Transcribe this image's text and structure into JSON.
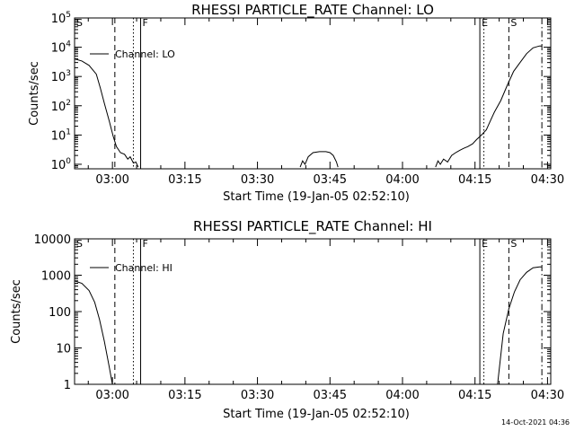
{
  "chart_data": [
    {
      "type": "line",
      "title": "RHESSI PARTICLE_RATE Channel: LO",
      "xlabel": "Start Time (19-Jan-05 02:52:10)",
      "ylabel": "Counts/sec",
      "yscale": "log",
      "xlim": [
        "02:52:10",
        "04:30:40"
      ],
      "ylim": [
        0.7,
        100000
      ],
      "xticks": [
        "03:00",
        "03:15",
        "03:30",
        "03:45",
        "04:00",
        "04:15",
        "04:30"
      ],
      "yticks": [
        {
          "value": 1,
          "base": "10",
          "exp": "0"
        },
        {
          "value": 10,
          "base": "10",
          "exp": "1"
        },
        {
          "value": 100,
          "base": "10",
          "exp": "2"
        },
        {
          "value": 1000,
          "base": "10",
          "exp": "3"
        },
        {
          "value": 10000,
          "base": "10",
          "exp": "4"
        },
        {
          "value": 100000,
          "base": "10",
          "exp": "5"
        }
      ],
      "legend": {
        "label": "Channel: LO",
        "position": "top-left"
      },
      "markers": [
        {
          "label": "S",
          "time": "02:52:10",
          "style": "solid"
        },
        {
          "label": "",
          "time": "03:00:30",
          "style": "dashed"
        },
        {
          "label": "",
          "time": "03:04:20",
          "style": "dotted"
        },
        {
          "label": "F",
          "time": "03:05:50",
          "style": "solid"
        },
        {
          "label": "E",
          "time": "04:16:00",
          "style": "solid"
        },
        {
          "label": "",
          "time": "04:16:50",
          "style": "dotted"
        },
        {
          "label": "S",
          "time": "04:22:00",
          "style": "dashed"
        },
        {
          "label": "",
          "time": "04:28:50",
          "style": "dashdot"
        }
      ],
      "segments": [
        {
          "series": "Channel: LO",
          "points": [
            [
              "02:52:10",
              4000
            ],
            [
              "02:53:40",
              3400
            ],
            [
              "02:55:10",
              2400
            ],
            [
              "02:56:40",
              1200
            ],
            [
              "02:57:30",
              400
            ],
            [
              "02:58:20",
              120
            ],
            [
              "02:59:20",
              30
            ],
            [
              "03:00:10",
              9
            ],
            [
              "03:00:50",
              4
            ],
            [
              "03:01:40",
              2.5
            ],
            [
              "03:02:30",
              2.2
            ],
            [
              "03:03:10",
              1.5
            ],
            [
              "03:03:40",
              1.8
            ],
            [
              "03:04:20",
              1.1
            ],
            [
              "03:04:50",
              1.2
            ],
            [
              "03:05:20",
              0.8
            ]
          ]
        },
        {
          "series": "Channel: LO",
          "points": [
            [
              "03:38:50",
              0.8
            ],
            [
              "03:39:20",
              1.3
            ],
            [
              "03:39:50",
              1.0
            ],
            [
              "03:40:30",
              1.8
            ],
            [
              "03:41:30",
              2.5
            ],
            [
              "03:42:50",
              2.7
            ],
            [
              "03:44:10",
              2.7
            ],
            [
              "03:45:00",
              2.5
            ],
            [
              "03:45:40",
              2.0
            ],
            [
              "03:46:20",
              1.2
            ],
            [
              "03:46:40",
              0.8
            ]
          ]
        },
        {
          "series": "Channel: LO",
          "points": [
            [
              "04:06:50",
              0.8
            ],
            [
              "04:07:20",
              1.3
            ],
            [
              "04:07:50",
              1.0
            ],
            [
              "04:08:30",
              1.5
            ],
            [
              "04:09:20",
              1.2
            ],
            [
              "04:10:10",
              2.0
            ],
            [
              "04:11:00",
              2.5
            ],
            [
              "04:11:50",
              3.0
            ],
            [
              "04:12:40",
              3.5
            ],
            [
              "04:13:30",
              4.0
            ],
            [
              "04:14:30",
              5.0
            ],
            [
              "04:15:20",
              7.0
            ],
            [
              "04:16:20",
              10
            ],
            [
              "04:17:20",
              15
            ],
            [
              "04:18:10",
              30
            ],
            [
              "04:19:00",
              60
            ],
            [
              "04:20:20",
              150
            ],
            [
              "04:21:40",
              500
            ],
            [
              "04:23:00",
              1500
            ],
            [
              "04:24:20",
              3000
            ],
            [
              "04:25:40",
              6000
            ],
            [
              "04:27:00",
              9500
            ],
            [
              "04:28:20",
              11000
            ],
            [
              "04:28:50",
              11000
            ]
          ]
        }
      ]
    },
    {
      "type": "line",
      "title": "RHESSI PARTICLE_RATE Channel: HI",
      "xlabel": "Start Time (19-Jan-05 02:52:10)",
      "ylabel": "Counts/sec",
      "yscale": "log",
      "xlim": [
        "02:52:10",
        "04:30:40"
      ],
      "ylim": [
        1,
        10000
      ],
      "xticks": [
        "03:00",
        "03:15",
        "03:30",
        "03:45",
        "04:00",
        "04:15",
        "04:30"
      ],
      "yticks": [
        {
          "value": 1,
          "base": "1",
          "exp": ""
        },
        {
          "value": 10,
          "base": "10",
          "exp": ""
        },
        {
          "value": 100,
          "base": "100",
          "exp": ""
        },
        {
          "value": 1000,
          "base": "1000",
          "exp": ""
        },
        {
          "value": 10000,
          "base": "10000",
          "exp": ""
        }
      ],
      "legend": {
        "label": "Channel: HI",
        "position": "top-left"
      },
      "markers": [
        {
          "label": "S",
          "time": "02:52:10",
          "style": "solid"
        },
        {
          "label": "",
          "time": "03:00:30",
          "style": "dashed"
        },
        {
          "label": "",
          "time": "03:04:20",
          "style": "dotted"
        },
        {
          "label": "F",
          "time": "03:05:50",
          "style": "solid"
        },
        {
          "label": "E",
          "time": "04:16:00",
          "style": "solid"
        },
        {
          "label": "",
          "time": "04:16:50",
          "style": "dotted"
        },
        {
          "label": "S",
          "time": "04:22:00",
          "style": "dashed"
        },
        {
          "label": "",
          "time": "04:28:50",
          "style": "dashdot"
        }
      ],
      "segments": [
        {
          "series": "Channel: HI",
          "points": [
            [
              "02:52:10",
              700
            ],
            [
              "02:53:40",
              600
            ],
            [
              "02:55:10",
              380
            ],
            [
              "02:56:20",
              180
            ],
            [
              "02:57:20",
              60
            ],
            [
              "02:58:20",
              15
            ],
            [
              "02:59:20",
              3
            ],
            [
              "03:00:00",
              1
            ]
          ]
        },
        {
          "series": "Channel: HI",
          "points": [
            [
              "04:19:40",
              1
            ],
            [
              "04:20:50",
              25
            ],
            [
              "04:22:00",
              120
            ],
            [
              "04:23:10",
              350
            ],
            [
              "04:24:20",
              750
            ],
            [
              "04:25:40",
              1200
            ],
            [
              "04:27:00",
              1600
            ],
            [
              "04:28:20",
              1700
            ],
            [
              "04:28:50",
              1700
            ]
          ]
        }
      ]
    }
  ],
  "timestamp": "14-Oct-2021 04:36"
}
